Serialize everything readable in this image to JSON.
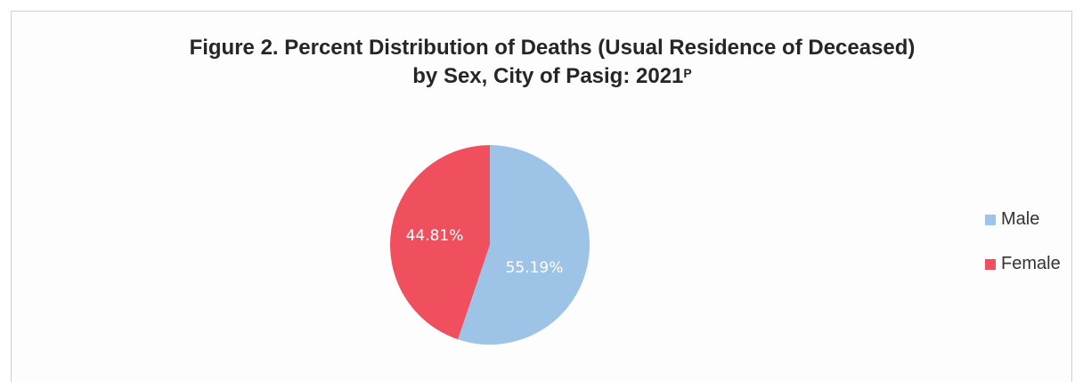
{
  "chart_data": {
    "type": "pie",
    "title_line1": "Figure 2. Percent Distribution of Deaths (Usual Residence of Deceased)",
    "title_line2": "by Sex, City of Pasig: 2021",
    "title_superscript": "P",
    "slices": [
      {
        "name": "Male",
        "value": 55.19,
        "label": "55.19%",
        "color": "#9DC3E6"
      },
      {
        "name": "Female",
        "value": 44.81,
        "label": "44.81%",
        "color": "#F0505E"
      }
    ],
    "legend_position": "right"
  }
}
